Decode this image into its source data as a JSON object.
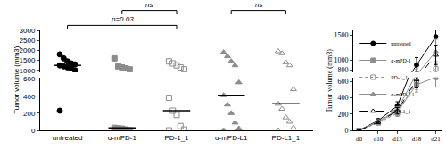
{
  "chart_data": [
    {
      "type": "scatter",
      "y_label": "Tumor volume (mm3)",
      "categories": [
        "untreated",
        "α-mPD-1",
        "PD-1_1",
        "α-mPD-L1",
        "PD-L1_1"
      ],
      "groups": [
        {
          "category": "untreated",
          "color": "#000000",
          "marker": "circle",
          "values": [
            1800,
            1600,
            1450,
            1350,
            1300,
            1250,
            1200,
            1150,
            1100,
            1000,
            230
          ],
          "median": 1250
        },
        {
          "category": "α-mPD-1",
          "color": "#8c8c8c",
          "marker": "square",
          "values": [
            1600,
            1200,
            1150,
            1100,
            1050,
            30,
            25,
            20,
            10,
            0,
            0
          ],
          "median": 30
        },
        {
          "category": "PD-1_1",
          "color": "#8c8c8c",
          "marker": "square-open",
          "values": [
            1450,
            1350,
            1250,
            1150,
            1050,
            380,
            230,
            180,
            50,
            10,
            0
          ],
          "median": 230
        },
        {
          "category": "α-mPD-L1",
          "color": "#8c8c8c",
          "marker": "triangle-up",
          "values": [
            1900,
            1700,
            1450,
            1250,
            560,
            410,
            300,
            200,
            90,
            20,
            0
          ],
          "median": 410
        },
        {
          "category": "PD-L1_1",
          "color": "#8c8c8c",
          "marker": "triangle-up-open",
          "values": [
            1950,
            1850,
            1400,
            1250,
            480,
            310,
            250,
            150,
            100,
            30,
            0
          ],
          "median": 310
        }
      ],
      "ylim": [
        0,
        3000
      ],
      "axis_break": [
        620,
        900
      ],
      "yticks": [
        0,
        200,
        400,
        600,
        1000,
        1500,
        2000,
        2500,
        3000
      ],
      "annotations": [
        {
          "text": "p=0.03",
          "from": "untreated",
          "to": "PD-1_1"
        },
        {
          "text": "ns",
          "from": "α-mPD-1",
          "to": "PD-1_1"
        },
        {
          "text": "ns",
          "from": "α-mPD-L1",
          "to": "PD-L1_1"
        }
      ]
    },
    {
      "type": "line",
      "y_label": "Tumor volume (mm3)",
      "categories": [
        "d0",
        "d10",
        "d13",
        "d18",
        "d21"
      ],
      "series": [
        {
          "name": "untreated",
          "color": "#000000",
          "marker": "circle",
          "line_style": "solid",
          "values": [
            0,
            120,
            300,
            900,
            1470
          ],
          "errors": [
            0,
            20,
            50,
            150,
            300
          ]
        },
        {
          "name": "α-mPD-1",
          "color": "#8c8c8c",
          "marker": "square",
          "line_style": "solid",
          "values": [
            0,
            100,
            230,
            560,
            650
          ],
          "errors": [
            0,
            15,
            40,
            90,
            120
          ]
        },
        {
          "name": "PD-1_1",
          "color": "#8c8c8c",
          "marker": "square-open",
          "line_style": "dot",
          "values": [
            0,
            90,
            210,
            600,
            820
          ],
          "errors": [
            0,
            15,
            40,
            100,
            150
          ]
        },
        {
          "name": "α-mPD-L1",
          "color": "#8c8c8c",
          "marker": "triangle-up",
          "line_style": "solid",
          "values": [
            0,
            110,
            250,
            700,
            1170
          ],
          "errors": [
            0,
            20,
            40,
            120,
            250
          ]
        },
        {
          "name": "PD-L1_1",
          "color": "#000000",
          "marker": "triangle-up-open",
          "line_style": "dash",
          "values": [
            0,
            100,
            240,
            620,
            1100
          ],
          "errors": [
            0,
            15,
            40,
            100,
            200
          ]
        }
      ],
      "ylim": [
        0,
        1600
      ],
      "axis_break": [
        650,
        750
      ],
      "yticks": [
        0,
        200,
        400,
        600,
        800,
        1000,
        1500
      ],
      "legend": "top left"
    }
  ]
}
